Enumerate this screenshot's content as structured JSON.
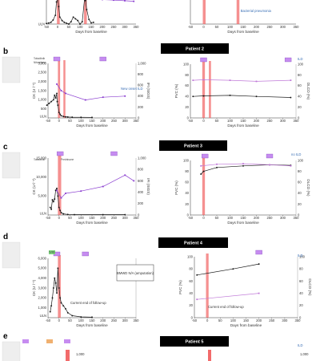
{
  "colors": {
    "ck": "#1a1a1a",
    "ifn": "#8b3fd0",
    "fvc": "#1a1a1a",
    "dlco": "#c07ad8",
    "treatment": "#f26b6b",
    "rtx_tag": "#c68cf0",
    "banner": "#000000",
    "annotation": "#3a6fb5",
    "drug_box": "#f7f1c0",
    "ivig_tag": "#7fd47f"
  },
  "figure": {
    "panel_labels": [
      "b",
      "c",
      "d",
      "e"
    ],
    "banners": [
      "Patient 2",
      "Patient 3",
      "Patient 4",
      "Patient 5"
    ],
    "x_axis_title": "Days from baseline",
    "x_ticks": [
      "-50",
      "0",
      "50",
      "100",
      "150",
      "200",
      "250",
      "300",
      "350"
    ],
    "uln": "ULN"
  },
  "chart_data": [
    {
      "panel": "a (top, cropped)",
      "type": "line",
      "series": [
        {
          "values": [
            [
              -50,
              10
            ],
            [
              -40,
              18
            ],
            [
              -30,
              30
            ],
            [
              -20,
              70
            ],
            [
              -10,
              150
            ],
            [
              -5,
              380
            ],
            [
              0,
              440
            ],
            [
              5,
              300
            ],
            [
              10,
              120
            ],
            [
              20,
              60
            ],
            [
              30,
              30
            ],
            [
              40,
              15
            ],
            [
              50,
              0
            ],
            [
              60,
              40
            ],
            [
              70,
              120
            ],
            [
              80,
              90
            ],
            [
              90,
              60
            ],
            [
              100,
              0
            ],
            [
              110,
              40
            ],
            [
              120,
              420
            ],
            [
              125,
              400
            ],
            [
              130,
              250
            ],
            [
              140,
              80
            ],
            [
              150,
              20
            ],
            [
              160,
              30
            ]
          ]
        },
        {
          "values": [
            [
              150,
              430
            ],
            [
              200,
              420
            ],
            [
              250,
              410
            ],
            [
              300,
              400
            ],
            [
              340,
              390
            ]
          ]
        }
      ],
      "annotations": [
        "Bacterial pneumonia"
      ]
    },
    {
      "panel": "b",
      "type": "line",
      "title": "Patient 2",
      "xlabel": "Days from baseline",
      "ylabel_left": "CK (U l⁻¹)",
      "ylabel_right": "IFI (SIGS)",
      "xlim": [
        -50,
        350
      ],
      "ylim_left": [
        0,
        3000
      ],
      "ylim_right": [
        0,
        1000
      ],
      "left_ticks": [
        "ULN",
        "500",
        "1,000",
        "1,500",
        "2,000",
        "2,500",
        "3,000"
      ],
      "right_ticks": [
        "0",
        "200",
        "400",
        "600",
        "800",
        "1,000"
      ],
      "series": [
        {
          "values": [
            [
              -55,
              700
            ],
            [
              -45,
              800
            ],
            [
              -35,
              900
            ],
            [
              -25,
              1000
            ],
            [
              -20,
              1250
            ],
            [
              -15,
              1100
            ],
            [
              -10,
              1350
            ],
            [
              -8,
              900
            ],
            [
              -5,
              700
            ],
            [
              0,
              300
            ],
            [
              5,
              200
            ],
            [
              10,
              120
            ],
            [
              20,
              80
            ],
            [
              30,
              60
            ],
            [
              40,
              50
            ],
            [
              60,
              40
            ],
            [
              100,
              35
            ],
            [
              150,
              30
            ]
          ]
        },
        {
          "values": [
            [
              -10,
              620
            ],
            [
              10,
              500
            ],
            [
              30,
              450
            ],
            [
              120,
              330
            ],
            [
              200,
              380
            ],
            [
              300,
              400
            ]
          ]
        }
      ],
      "annotations": [
        "Tofacitinib",
        "Nitrosilane",
        "New onset ILD"
      ],
      "treatment_windows": [
        [
          -5,
          5
        ],
        [
          20,
          28
        ]
      ],
      "rtx": [
        -10,
        200
      ]
    },
    {
      "panel": "b-right",
      "type": "line",
      "xlabel": "Days from baseline",
      "ylabel_left": "FVC (%)",
      "ylabel_right": "DLCO (%)",
      "xlim": [
        -50,
        350
      ],
      "ylim": [
        0,
        100
      ],
      "left_ticks": [
        "0",
        "20",
        "40",
        "60",
        "80",
        "100"
      ],
      "right_ticks": [
        "0",
        "20",
        "40",
        "60",
        "80",
        "100"
      ],
      "series": [
        {
          "values": [
            [
              -40,
              40
            ],
            [
              0,
              41
            ],
            [
              100,
              42
            ],
            [
              200,
              40
            ],
            [
              330,
              38
            ]
          ]
        },
        {
          "values": [
            [
              -40,
              70
            ],
            [
              0,
              71
            ],
            [
              100,
              70
            ],
            [
              200,
              68
            ],
            [
              330,
              70
            ]
          ]
        }
      ],
      "annotations": [
        "ILD"
      ],
      "treatment_windows": [
        [
          -5,
          5
        ],
        [
          20,
          28
        ]
      ],
      "rtx": [
        0,
        320
      ]
    },
    {
      "panel": "c",
      "type": "line",
      "title": "Patient 3",
      "xlabel": "Days from baseline",
      "ylabel_left": "CK (U l⁻¹)",
      "ylabel_right": "IFI (SIGS)",
      "xlim": [
        -50,
        350
      ],
      "ylim_left": [
        0,
        15000
      ],
      "ylim_right": [
        0,
        1000
      ],
      "left_ticks": [
        "ULN",
        "5,000",
        "10,000",
        "15,000"
      ],
      "right_ticks": [
        "0",
        "200",
        "400",
        "600",
        "800",
        "1,000"
      ],
      "series": [
        {
          "values": [
            [
              -40,
              2000
            ],
            [
              -35,
              1500
            ],
            [
              -30,
              4000
            ],
            [
              -25,
              3500
            ],
            [
              -20,
              4200
            ],
            [
              -15,
              6500
            ],
            [
              -10,
              7000
            ],
            [
              -5,
              5000
            ],
            [
              0,
              2000
            ],
            [
              5,
              1200
            ],
            [
              10,
              600
            ],
            [
              20,
              300
            ],
            [
              40,
              150
            ],
            [
              70,
              100
            ],
            [
              200,
              100
            ],
            [
              300,
              100
            ]
          ]
        },
        {
          "values": [
            [
              -10,
              430
            ],
            [
              10,
              300
            ],
            [
              30,
              380
            ],
            [
              100,
              420
            ],
            [
              200,
              500
            ],
            [
              300,
              700
            ],
            [
              340,
              600
            ]
          ]
        }
      ],
      "annotations": [
        "Tofacitinib",
        "Prednisone"
      ],
      "treatment_windows": [
        [
          -5,
          10
        ]
      ],
      "rtx": [
        5,
        250
      ]
    },
    {
      "panel": "c-right",
      "type": "line",
      "xlabel": "Days from baseline",
      "ylabel_left": "FVC (%)",
      "ylabel_right": "DLCO (%)",
      "xlim": [
        -50,
        350
      ],
      "ylim": [
        0,
        100
      ],
      "left_ticks": [
        "0",
        "20",
        "40",
        "60",
        "80",
        "100"
      ],
      "right_ticks": [
        "0",
        "20",
        "40",
        "60",
        "80",
        "100"
      ],
      "series": [
        {
          "values": [
            [
              -10,
              75
            ],
            [
              0,
              80
            ],
            [
              50,
              87
            ],
            [
              150,
              90
            ],
            [
              250,
              92
            ],
            [
              330,
              91
            ]
          ]
        },
        {
          "values": [
            [
              -10,
              90
            ],
            [
              50,
              93
            ],
            [
              150,
              94
            ],
            [
              250,
              92
            ],
            [
              330,
              90
            ]
          ]
        }
      ],
      "annotations": [
        "no ILD"
      ],
      "treatment_windows": [
        [
          -5,
          5
        ]
      ],
      "rtx": [
        5,
        250
      ]
    },
    {
      "panel": "d",
      "type": "line",
      "title": "Patient 4",
      "xlabel": "Days from baseline",
      "ylabel_left": "CK (U l⁻¹)",
      "ylim_left": [
        0,
        6000
      ],
      "left_ticks": [
        "ULN",
        "1,000",
        "2,000",
        "3,000",
        "4,000",
        "5,000",
        "6,000"
      ],
      "series": [
        {
          "values": [
            [
              -40,
              600
            ],
            [
              -35,
              1200
            ],
            [
              -30,
              2000
            ],
            [
              -25,
              3000
            ],
            [
              -20,
              4000
            ],
            [
              -15,
              3500
            ],
            [
              -10,
              2500
            ],
            [
              -5,
              5000
            ],
            [
              0,
              3000
            ],
            [
              5,
              2000
            ],
            [
              10,
              1500
            ],
            [
              20,
              1200
            ],
            [
              30,
              900
            ],
            [
              40,
              500
            ],
            [
              60,
              200
            ],
            [
              100,
              80
            ],
            [
              150,
              50
            ]
          ]
        }
      ],
      "annotations": [
        "BMWD N/A (amputation)",
        "Current end of follow-up",
        "IVIG"
      ],
      "treatment_windows": [
        [
          -5,
          8
        ]
      ],
      "rtx": [
        -10,
        120
      ]
    },
    {
      "panel": "d-right",
      "type": "line",
      "xlabel": "Days from baseline",
      "ylabel_left": "FVC (%)",
      "ylabel_right": "DLCO (%)",
      "xlim": [
        -50,
        350
      ],
      "ylim": [
        0,
        100
      ],
      "left_ticks": [
        "0",
        "20",
        "40",
        "60",
        "80",
        "100"
      ],
      "right_ticks": [
        "0",
        "20",
        "40",
        "60",
        "80",
        "100"
      ],
      "series": [
        {
          "values": [
            [
              -40,
              70
            ],
            [
              100,
              80
            ],
            [
              200,
              88
            ]
          ]
        },
        {
          "values": [
            [
              -40,
              30
            ],
            [
              200,
              40
            ]
          ]
        }
      ],
      "annotations": [
        "Current end of follow-up",
        "ILD"
      ],
      "treatment_windows": [
        [
          -5,
          5
        ]
      ],
      "rtx": [
        200
      ]
    },
    {
      "panel": "e",
      "type": "line",
      "title": "Patient 5",
      "annotations": [
        "ILD"
      ],
      "left_ticks": [
        "1,000"
      ],
      "right_ticks": [
        "1,000"
      ],
      "treatment_windows": [
        [
          -5,
          5
        ]
      ],
      "rtx": [
        -20,
        15
      ]
    }
  ]
}
